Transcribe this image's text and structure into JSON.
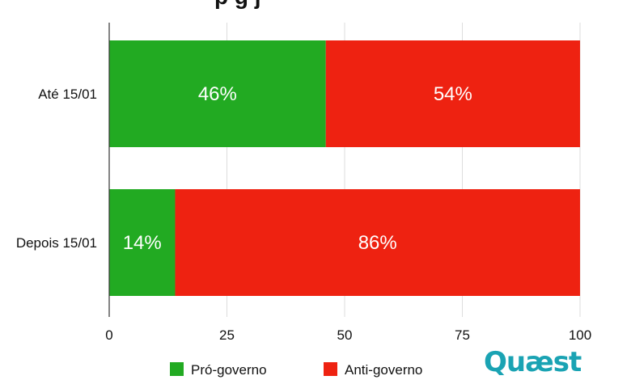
{
  "title_fragment": "p                  g  j",
  "chart_data": {
    "type": "bar",
    "orientation": "horizontal",
    "stacked": true,
    "categories": [
      "Até 15/01",
      "Depois 15/01"
    ],
    "series": [
      {
        "name": "Pró-governo",
        "values": [
          46,
          14
        ],
        "labels": [
          "46%",
          "14%"
        ],
        "color": "#22aa22"
      },
      {
        "name": "Anti-governo",
        "values": [
          54,
          86
        ],
        "labels": [
          "54%",
          "86%"
        ],
        "color": "#ee2211"
      }
    ],
    "xlim": [
      0,
      100
    ],
    "xticks": [
      0,
      25,
      50,
      75,
      100
    ],
    "grid": true,
    "legend": "bottom"
  },
  "logo_text": "Quæst"
}
